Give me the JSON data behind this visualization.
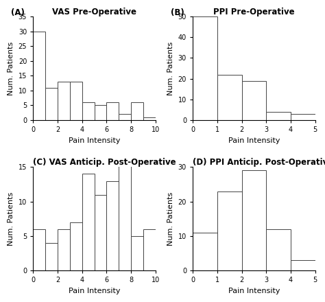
{
  "A": {
    "title": "VAS Pre-Operative",
    "label": "(A)",
    "xlabel": "Pain Intensity",
    "ylabel": "Num. Patients",
    "xlim": [
      0,
      10
    ],
    "ylim": [
      0,
      35
    ],
    "yticks": [
      0,
      5,
      10,
      15,
      20,
      25,
      30,
      35
    ],
    "xticks": [
      0,
      2,
      4,
      6,
      8,
      10
    ],
    "bar_edges": [
      0,
      1,
      2,
      3,
      4,
      5,
      6,
      7,
      8,
      9,
      10
    ],
    "bar_heights": [
      30,
      11,
      13,
      13,
      6,
      5,
      6,
      2,
      6,
      1
    ]
  },
  "B": {
    "title": "PPI Pre-Operative",
    "label": "(B)",
    "xlabel": "Pain Intensity",
    "ylabel": "Num. Patients",
    "xlim": [
      0,
      5
    ],
    "ylim": [
      0,
      50
    ],
    "yticks": [
      0,
      10,
      20,
      30,
      40,
      50
    ],
    "xticks": [
      0,
      1,
      2,
      3,
      4,
      5
    ],
    "bar_edges": [
      0,
      1,
      2,
      3,
      4,
      5
    ],
    "bar_heights": [
      50,
      22,
      19,
      4,
      3
    ]
  },
  "C": {
    "title": "VAS Anticip. Post-Operative",
    "label": "(C)",
    "xlabel": "Pain Intensity",
    "ylabel": "Num. Patients",
    "xlim": [
      0,
      10
    ],
    "ylim": [
      0,
      15
    ],
    "yticks": [
      0,
      5,
      10,
      15
    ],
    "xticks": [
      0,
      2,
      4,
      6,
      8,
      10
    ],
    "bar_edges": [
      0,
      1,
      2,
      3,
      4,
      5,
      6,
      7,
      8,
      9,
      10
    ],
    "bar_heights": [
      6,
      4,
      6,
      7,
      14,
      11,
      13,
      16,
      5,
      6
    ]
  },
  "D": {
    "title": "PPI Anticip. Post-Operative",
    "label": "(D)",
    "xlabel": "Pain Intensity",
    "ylabel": "Num. Patients",
    "xlim": [
      0,
      5
    ],
    "ylim": [
      0,
      30
    ],
    "yticks": [
      0,
      10,
      20,
      30
    ],
    "xticks": [
      0,
      1,
      2,
      3,
      4,
      5
    ],
    "bar_edges": [
      0,
      1,
      2,
      3,
      4,
      5
    ],
    "bar_heights": [
      11,
      23,
      29,
      12,
      3
    ]
  },
  "bg_color": "#ffffff",
  "bar_facecolor": "white",
  "bar_edgecolor": "#444444",
  "title_fontsize": 8.5,
  "tick_fontsize": 7,
  "axis_label_fontsize": 8
}
